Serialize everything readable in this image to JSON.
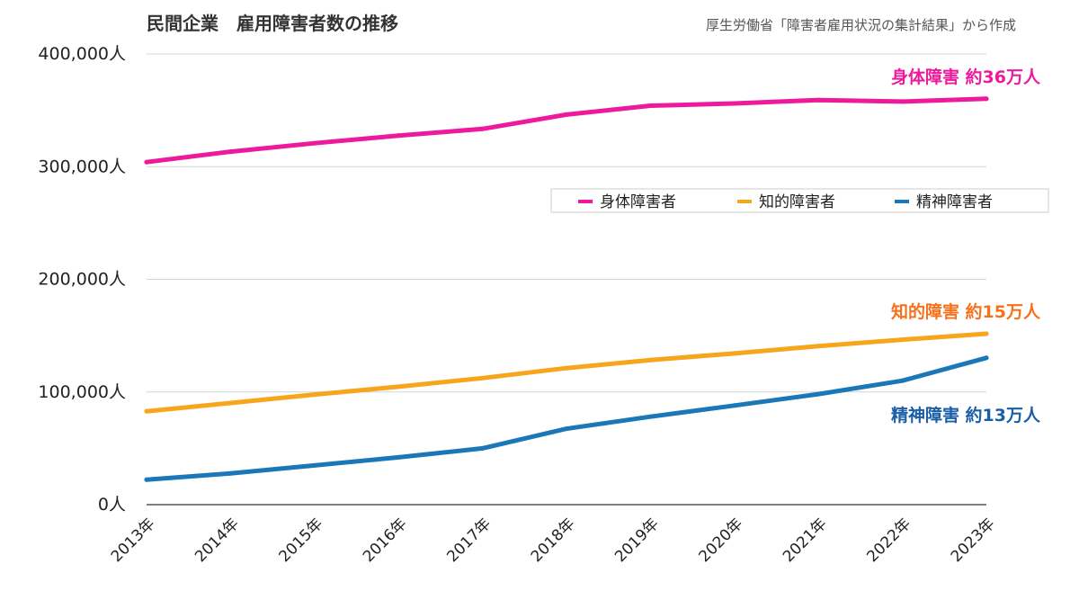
{
  "chart_data": {
    "type": "line",
    "title": "民間企業　雇用障害者数の推移",
    "source": "厚生労働省「障害者雇用状況の集計結果」から作成",
    "x": [
      "2013年",
      "2014年",
      "2015年",
      "2016年",
      "2017年",
      "2018年",
      "2019年",
      "2020年",
      "2021年",
      "2022年",
      "2023年"
    ],
    "ylim": [
      0,
      400000
    ],
    "yticks": [
      {
        "value": 0,
        "label": "0人"
      },
      {
        "value": 100000,
        "label": "100,000人"
      },
      {
        "value": 200000,
        "label": "200,000人"
      },
      {
        "value": 300000,
        "label": "300,000人"
      },
      {
        "value": 400000,
        "label": "400,000人"
      }
    ],
    "grid": true,
    "legend_position": "top-right",
    "series": [
      {
        "name": "身体障害者",
        "color": "#ee1a9c",
        "values": [
          304000,
          313300,
          320800,
          327600,
          333500,
          346200,
          354100,
          356100,
          359100,
          357800,
          360200
        ],
        "annotation": "身体障害 約36万人",
        "annotation_color": "#ee1a9c"
      },
      {
        "name": "知的障害者",
        "color": "#f7a51c",
        "values": [
          82900,
          90200,
          97700,
          104700,
          112300,
          121200,
          128400,
          134200,
          140700,
          146400,
          151700
        ],
        "annotation": "知的障害 約15万人",
        "annotation_color": "#f7711c"
      },
      {
        "name": "精神障害者",
        "color": "#1a78b9",
        "values": [
          22200,
          27700,
          34800,
          42000,
          50000,
          67400,
          78100,
          88000,
          98100,
          110000,
          130300
        ],
        "annotation": "精神障害 約13万人",
        "annotation_color": "#1a5ea6"
      }
    ]
  }
}
